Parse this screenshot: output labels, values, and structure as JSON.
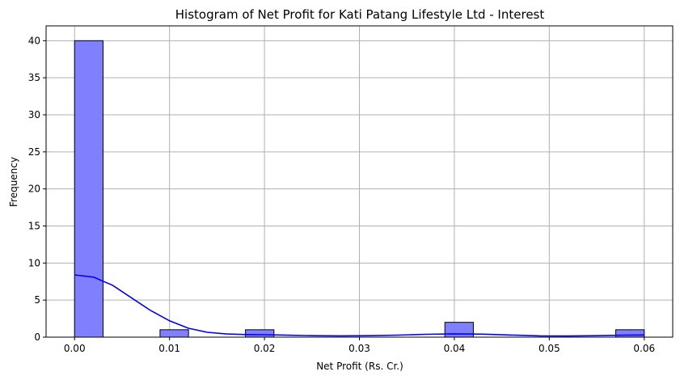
{
  "chart_data": {
    "type": "bar",
    "title": "Histogram of Net Profit for Kati Patang Lifestyle Ltd - Interest",
    "xlabel": "Net Profit (Rs. Cr.)",
    "ylabel": "Frequency",
    "xlim": [
      -0.003,
      0.063
    ],
    "ylim": [
      0,
      42
    ],
    "xticks": [
      0.0,
      0.01,
      0.02,
      0.03,
      0.04,
      0.05,
      0.06
    ],
    "xtick_labels": [
      "0.00",
      "0.01",
      "0.02",
      "0.03",
      "0.04",
      "0.05",
      "0.06"
    ],
    "yticks": [
      0,
      5,
      10,
      15,
      20,
      25,
      30,
      35,
      40
    ],
    "yticklabels": [
      "0",
      "5",
      "10",
      "15",
      "20",
      "25",
      "30",
      "35",
      "40"
    ],
    "grid": true,
    "bins": [
      {
        "x0": 0.0,
        "x1": 0.003,
        "count": 40
      },
      {
        "x0": 0.009,
        "x1": 0.012,
        "count": 1
      },
      {
        "x0": 0.018,
        "x1": 0.021,
        "count": 1
      },
      {
        "x0": 0.039,
        "x1": 0.042,
        "count": 2
      },
      {
        "x0": 0.057,
        "x1": 0.06,
        "count": 1
      }
    ],
    "kde": {
      "x": [
        0.0,
        0.002,
        0.004,
        0.006,
        0.008,
        0.01,
        0.012,
        0.014,
        0.016,
        0.018,
        0.02,
        0.022,
        0.025,
        0.028,
        0.031,
        0.034,
        0.037,
        0.04,
        0.043,
        0.046,
        0.049,
        0.052,
        0.055,
        0.058,
        0.06
      ],
      "y": [
        8.4,
        8.1,
        7.0,
        5.3,
        3.6,
        2.2,
        1.2,
        0.65,
        0.42,
        0.35,
        0.33,
        0.28,
        0.2,
        0.17,
        0.2,
        0.27,
        0.38,
        0.45,
        0.4,
        0.28,
        0.18,
        0.15,
        0.2,
        0.27,
        0.3
      ]
    },
    "colors": {
      "bar_fill": "#8080ff",
      "bar_edge": "#000000",
      "kde_line": "#0000ff"
    }
  }
}
